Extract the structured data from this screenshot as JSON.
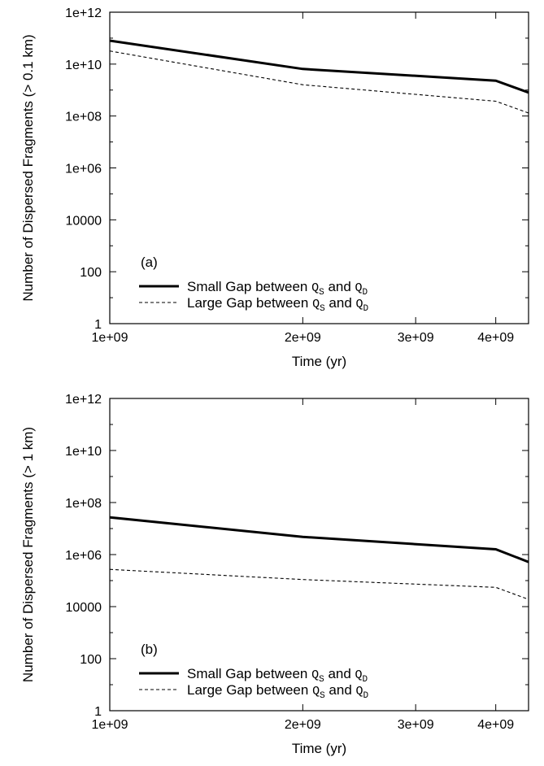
{
  "chart_data": [
    {
      "type": "line",
      "panel_label": "(a)",
      "xlabel": "Time (yr)",
      "ylabel": "Number of Dispersed Fragments (> 0.1 km)",
      "x_scale": "log",
      "y_scale": "log",
      "xlim": [
        1000000000.0,
        4500000000.0
      ],
      "ylim": [
        1,
        1000000000000.0
      ],
      "x_ticks": [
        {
          "value": 1000000000.0,
          "label": "1e+09"
        },
        {
          "value": 2000000000.0,
          "label": "2e+09"
        },
        {
          "value": 3000000000.0,
          "label": "3e+09"
        },
        {
          "value": 4000000000.0,
          "label": "4e+09"
        }
      ],
      "y_ticks": [
        {
          "value": 1,
          "label": "1"
        },
        {
          "value": 100,
          "label": "100"
        },
        {
          "value": 10000,
          "label": "10000"
        },
        {
          "value": 1000000.0,
          "label": "1e+06"
        },
        {
          "value": 100000000.0,
          "label": "1e+08"
        },
        {
          "value": 10000000000.0,
          "label": "1e+10"
        },
        {
          "value": 1000000000000.0,
          "label": "1e+12"
        }
      ],
      "legend_position": "bottom-left",
      "series": [
        {
          "name": "Small Gap between Q_S and Q_D",
          "legend": {
            "prefix": "Small Gap between ",
            "q1": "Q",
            "s1": "S",
            "mid": " and ",
            "q2": "Q",
            "s2": "D"
          },
          "style": "solid",
          "x": [
            1000000000.0,
            2000000000.0,
            4000000000.0,
            4500000000.0
          ],
          "y": [
            80000000000.0,
            6500000000.0,
            2300000000.0,
            800000000.0
          ]
        },
        {
          "name": "Large Gap between Q_S and Q_D",
          "legend": {
            "prefix": "Large Gap between ",
            "q1": "Q",
            "s1": "S",
            "mid": " and ",
            "q2": "Q",
            "s2": "D"
          },
          "style": "dashed",
          "x": [
            1000000000.0,
            2000000000.0,
            4000000000.0,
            4500000000.0
          ],
          "y": [
            32000000000.0,
            1600000000.0,
            370000000.0,
            130000000.0
          ]
        }
      ]
    },
    {
      "type": "line",
      "panel_label": "(b)",
      "xlabel": "Time (yr)",
      "ylabel": "Number of Dispersed Fragments (> 1 km)",
      "x_scale": "log",
      "y_scale": "log",
      "xlim": [
        1000000000.0,
        4500000000.0
      ],
      "ylim": [
        1,
        1000000000000.0
      ],
      "x_ticks": [
        {
          "value": 1000000000.0,
          "label": "1e+09"
        },
        {
          "value": 2000000000.0,
          "label": "2e+09"
        },
        {
          "value": 3000000000.0,
          "label": "3e+09"
        },
        {
          "value": 4000000000.0,
          "label": "4e+09"
        }
      ],
      "y_ticks": [
        {
          "value": 1,
          "label": "1"
        },
        {
          "value": 100,
          "label": "100"
        },
        {
          "value": 10000,
          "label": "10000"
        },
        {
          "value": 1000000.0,
          "label": "1e+06"
        },
        {
          "value": 100000000.0,
          "label": "1e+08"
        },
        {
          "value": 10000000000.0,
          "label": "1e+10"
        },
        {
          "value": 1000000000000.0,
          "label": "1e+12"
        }
      ],
      "legend_position": "bottom-left",
      "series": [
        {
          "name": "Small Gap between Q_S and Q_D",
          "legend": {
            "prefix": "Small Gap between ",
            "q1": "Q",
            "s1": "S",
            "mid": " and ",
            "q2": "Q",
            "s2": "D"
          },
          "style": "solid",
          "x": [
            1000000000.0,
            2000000000.0,
            4000000000.0,
            4500000000.0
          ],
          "y": [
            27000000.0,
            4800000.0,
            1600000.0,
            520000.0
          ]
        },
        {
          "name": "Large Gap between Q_S and Q_D",
          "legend": {
            "prefix": "Large Gap between ",
            "q1": "Q",
            "s1": "S",
            "mid": " and ",
            "q2": "Q",
            "s2": "D"
          },
          "style": "dashed",
          "x": [
            1000000000.0,
            2000000000.0,
            4000000000.0,
            4500000000.0
          ],
          "y": [
            270000.0,
            110000.0,
            55000.0,
            19000.0
          ]
        }
      ]
    }
  ]
}
